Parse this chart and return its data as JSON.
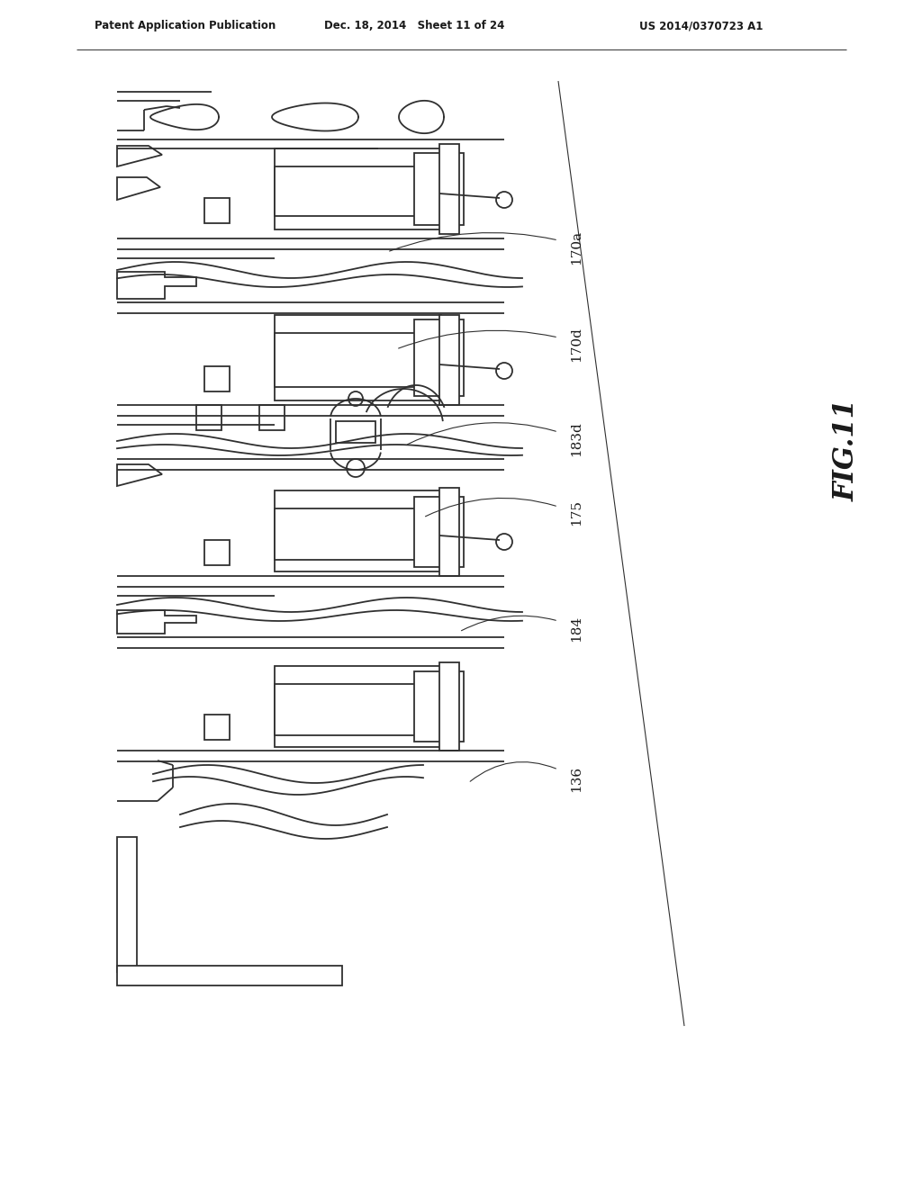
{
  "bg_color": "#ffffff",
  "header_left": "Patent Application Publication",
  "header_mid": "Dec. 18, 2014   Sheet 11 of 24",
  "header_right": "US 2014/0370723 A1",
  "fig_label": "FIG.11",
  "ref_labels": [
    "136",
    "184",
    "175",
    "183d",
    "170d",
    "170a"
  ],
  "line_color": "#303030",
  "text_color": "#1a1a1a"
}
